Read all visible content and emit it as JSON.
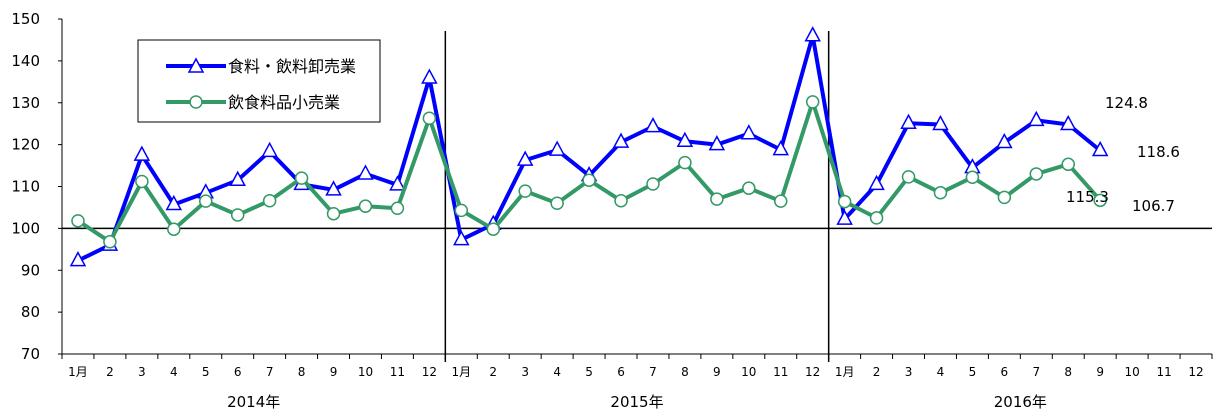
{
  "chart_data": {
    "type": "line",
    "title": "",
    "xlabel": "",
    "ylabel": "",
    "ylim": [
      70,
      150
    ],
    "yticks": [
      "70",
      "80",
      "90",
      "100",
      "110",
      "120",
      "130",
      "140",
      "150"
    ],
    "baseline": 100,
    "month_labels": [
      "1月",
      "2",
      "3",
      "4",
      "5",
      "6",
      "7",
      "8",
      "9",
      "10",
      "11",
      "12",
      "1月",
      "2",
      "3",
      "4",
      "5",
      "6",
      "7",
      "8",
      "9",
      "10",
      "11",
      "12",
      "1月",
      "2",
      "3",
      "4",
      "5",
      "6",
      "7",
      "8",
      "9",
      "10",
      "11",
      "12"
    ],
    "year_labels": [
      "2014年",
      "2015年",
      "2016年"
    ],
    "legend": {
      "position": "top-left"
    },
    "series": [
      {
        "name": "食料・飲料卸売業",
        "color": "#0000ff",
        "marker": "triangle",
        "values": [
          92.3,
          96,
          117.5,
          105.7,
          108.5,
          111.5,
          118.4,
          110.5,
          109.2,
          113,
          110.4,
          135.9,
          97.3,
          101,
          116.3,
          118.7,
          112.6,
          120.6,
          124.3,
          120.8,
          120,
          122.6,
          118.8,
          146,
          102.2,
          110.5,
          125.1,
          124.8,
          114.5,
          120.5,
          125.8,
          124.8,
          118.6
        ]
      },
      {
        "name": "飲食料品小売業",
        "color": "#339966",
        "marker": "circle",
        "values": [
          101.8,
          96.8,
          111.2,
          99.8,
          106.5,
          103.2,
          106.6,
          112,
          103.5,
          105.3,
          104.8,
          126.3,
          104.3,
          99.8,
          108.9,
          106,
          111.5,
          106.6,
          110.6,
          115.7,
          107,
          109.6,
          106.5,
          130.2,
          106.4,
          102.5,
          112.3,
          108.5,
          112.2,
          107.4,
          113,
          115.3,
          106.7
        ]
      }
    ],
    "annotations": [
      "124.8",
      "118.6",
      "115.3",
      "106.7"
    ]
  }
}
